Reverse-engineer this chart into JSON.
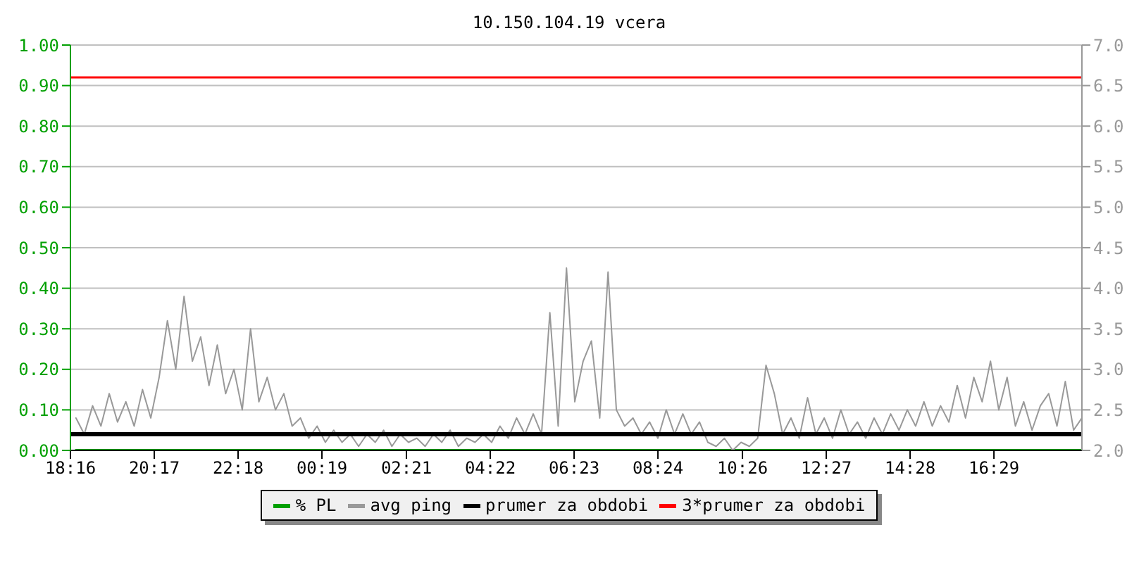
{
  "chart_data": {
    "type": "line",
    "title": "10.150.104.19 vcera",
    "xlim": [
      "--01-01T18:16",
      "--01-02T18:36"
    ],
    "xticks": [
      {
        "value": "--01-01T18:16",
        "label": "18:16"
      },
      {
        "value": "--01-01T20:17",
        "label": "20:17"
      },
      {
        "value": "--01-01T22:18",
        "label": "22:18"
      },
      {
        "value": "--01-02T00:19",
        "label": "00:19"
      },
      {
        "value": "--01-02T02:21",
        "label": "02:21"
      },
      {
        "value": "--01-02T04:22",
        "label": "04:22"
      },
      {
        "value": "--01-02T06:23",
        "label": "06:23"
      },
      {
        "value": "--01-02T08:24",
        "label": "08:24"
      },
      {
        "value": "--01-02T10:26",
        "label": "10:26"
      },
      {
        "value": "--01-02T12:27",
        "label": "12:27"
      },
      {
        "value": "--01-02T14:28",
        "label": "14:28"
      },
      {
        "value": "--01-02T16:29",
        "label": "16:29"
      }
    ],
    "ylim": [
      0,
      1
    ],
    "yticks": [
      {
        "value": 0,
        "label": "0.00"
      },
      {
        "value": 0.1,
        "label": "0.10"
      },
      {
        "value": 0.2,
        "label": "0.20"
      },
      {
        "value": 0.3,
        "label": "0.30"
      },
      {
        "value": 0.4,
        "label": "0.40"
      },
      {
        "value": 0.5,
        "label": "0.50"
      },
      {
        "value": 0.6,
        "label": "0.60"
      },
      {
        "value": 0.7,
        "label": "0.70"
      },
      {
        "value": 0.8,
        "label": "0.80"
      },
      {
        "value": 0.9,
        "label": "0.90"
      },
      {
        "value": 1,
        "label": "1.00"
      }
    ],
    "y2lim": [
      2,
      7
    ],
    "y2ticks": [
      {
        "value": 2,
        "label": "2.0"
      },
      {
        "value": 2.5,
        "label": "2.5"
      },
      {
        "value": 3,
        "label": "3.0"
      },
      {
        "value": 3.5,
        "label": "3.5"
      },
      {
        "value": 4,
        "label": "4.0"
      },
      {
        "value": 4.5,
        "label": "4.5"
      },
      {
        "value": 5,
        "label": "5.0"
      },
      {
        "value": 5.5,
        "label": "5.5"
      },
      {
        "value": 6,
        "label": "6.0"
      },
      {
        "value": 6.5,
        "label": "6.5"
      },
      {
        "value": 7,
        "label": "7.0"
      }
    ],
    "grid": "y",
    "legend": "bottom",
    "marker": "none",
    "line_style": "solid",
    "series": [
      {
        "name": "% PL",
        "color": "#00a000",
        "x": [
          "--01-01T18:24",
          "--01-02T18:36"
        ],
        "values": [
          0,
          0
        ]
      },
      {
        "name": "avg ping",
        "color": "#999999",
        "axis": "y2",
        "x": [
          "--01-01T18:24",
          "--01-01T18:36",
          "--01-01T18:48",
          "--01-01T19:00",
          "--01-01T19:12",
          "--01-01T19:24",
          "--01-01T19:36",
          "--01-01T19:48",
          "--01-01T20:00",
          "--01-01T20:12",
          "--01-01T20:24",
          "--01-01T20:36",
          "--01-01T20:48",
          "--01-01T21:00",
          "--01-01T21:12",
          "--01-01T21:24",
          "--01-01T21:36",
          "--01-01T21:48",
          "--01-01T22:00",
          "--01-01T22:12",
          "--01-01T22:24",
          "--01-01T22:36",
          "--01-01T22:48",
          "--01-01T23:00",
          "--01-01T23:12",
          "--01-01T23:24",
          "--01-01T23:36",
          "--01-01T23:48",
          "--01-02T00:00",
          "--01-02T00:12",
          "--01-02T00:24",
          "--01-02T00:36",
          "--01-02T00:48",
          "--01-02T01:00",
          "--01-02T01:12",
          "--01-02T01:24",
          "--01-02T01:36",
          "--01-02T01:48",
          "--01-02T02:00",
          "--01-02T02:12",
          "--01-02T02:24",
          "--01-02T02:36",
          "--01-02T02:48",
          "--01-02T03:00",
          "--01-02T03:12",
          "--01-02T03:24",
          "--01-02T03:36",
          "--01-02T03:48",
          "--01-02T04:00",
          "--01-02T04:12",
          "--01-02T04:24",
          "--01-02T04:36",
          "--01-02T04:48",
          "--01-02T05:00",
          "--01-02T05:12",
          "--01-02T05:24",
          "--01-02T05:36",
          "--01-02T05:48",
          "--01-02T06:00",
          "--01-02T06:12",
          "--01-02T06:24",
          "--01-02T06:36",
          "--01-02T06:48",
          "--01-02T07:00",
          "--01-02T07:12",
          "--01-02T07:24",
          "--01-02T07:36",
          "--01-02T07:48",
          "--01-02T08:00",
          "--01-02T08:12",
          "--01-02T08:24",
          "--01-02T08:36",
          "--01-02T08:48",
          "--01-02T09:00",
          "--01-02T09:12",
          "--01-02T09:24",
          "--01-02T09:36",
          "--01-02T09:48",
          "--01-02T10:00",
          "--01-02T10:12",
          "--01-02T10:24",
          "--01-02T10:36",
          "--01-02T10:48",
          "--01-02T11:00",
          "--01-02T11:12",
          "--01-02T11:24",
          "--01-02T11:36",
          "--01-02T11:48",
          "--01-02T12:00",
          "--01-02T12:12",
          "--01-02T12:24",
          "--01-02T12:36",
          "--01-02T12:48",
          "--01-02T13:00",
          "--01-02T13:12",
          "--01-02T13:24",
          "--01-02T13:36",
          "--01-02T13:48",
          "--01-02T14:00",
          "--01-02T14:12",
          "--01-02T14:24",
          "--01-02T14:36",
          "--01-02T14:48",
          "--01-02T15:00",
          "--01-02T15:12",
          "--01-02T15:24",
          "--01-02T15:36",
          "--01-02T15:48",
          "--01-02T16:00",
          "--01-02T16:12",
          "--01-02T16:24",
          "--01-02T16:36",
          "--01-02T16:48",
          "--01-02T17:00",
          "--01-02T17:12",
          "--01-02T17:24",
          "--01-02T17:36",
          "--01-02T17:48",
          "--01-02T18:00",
          "--01-02T18:12",
          "--01-02T18:24",
          "--01-02T18:36"
        ],
        "values": [
          2.4,
          2.2,
          2.55,
          2.3,
          2.7,
          2.35,
          2.6,
          2.3,
          2.75,
          2.4,
          2.9,
          3.6,
          3.0,
          3.9,
          3.1,
          3.4,
          2.8,
          3.3,
          2.7,
          3.0,
          2.5,
          3.5,
          2.6,
          2.9,
          2.5,
          2.7,
          2.3,
          2.4,
          2.15,
          2.3,
          2.1,
          2.25,
          2.1,
          2.2,
          2.05,
          2.2,
          2.1,
          2.25,
          2.05,
          2.2,
          2.1,
          2.15,
          2.05,
          2.2,
          2.1,
          2.25,
          2.05,
          2.15,
          2.1,
          2.2,
          2.1,
          2.3,
          2.15,
          2.4,
          2.2,
          2.45,
          2.2,
          3.7,
          2.3,
          4.25,
          2.6,
          3.1,
          3.35,
          2.4,
          4.2,
          2.5,
          2.3,
          2.4,
          2.2,
          2.35,
          2.15,
          2.5,
          2.2,
          2.45,
          2.2,
          2.35,
          2.1,
          2.05,
          2.15,
          2.0,
          2.1,
          2.05,
          2.15,
          3.05,
          2.7,
          2.2,
          2.4,
          2.15,
          2.65,
          2.2,
          2.4,
          2.15,
          2.5,
          2.2,
          2.35,
          2.15,
          2.4,
          2.2,
          2.45,
          2.25,
          2.5,
          2.3,
          2.6,
          2.3,
          2.55,
          2.35,
          2.8,
          2.4,
          2.9,
          2.6,
          3.1,
          2.5,
          2.9,
          2.3,
          2.6,
          2.25,
          2.55,
          2.7,
          2.3,
          2.85,
          2.25,
          2.4
        ]
      }
    ],
    "ref_lines": [
      {
        "axis": "y2",
        "value": 2.2,
        "label": "prumer za obdobi",
        "color": "#000000"
      },
      {
        "axis": "y2",
        "value": 6.6,
        "label": "3*prumer za obdobi",
        "color": "#ff0000"
      }
    ]
  }
}
